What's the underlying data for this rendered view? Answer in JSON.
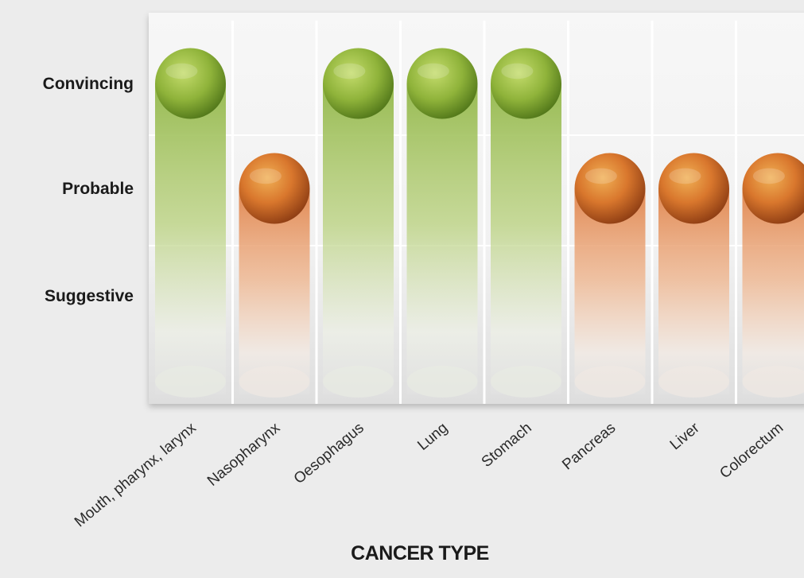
{
  "chart_data": {
    "type": "bar",
    "xlabel": "CANCER TYPE",
    "ylabel": "",
    "levels": [
      "Suggestive",
      "Probable",
      "Convincing"
    ],
    "categories": [
      "Mouth, pharynx, larynx",
      "Nasopharynx",
      "Oesophagus",
      "Lung",
      "Stomach",
      "Pancreas",
      "Liver",
      "Colorectum"
    ],
    "values": [
      3,
      2,
      3,
      3,
      3,
      2,
      2,
      2
    ],
    "ylim": [
      0,
      3
    ],
    "grid": true,
    "legend": "none",
    "colors": {
      "Convincing": "#8db23a",
      "Probable": "#e2874a"
    }
  }
}
